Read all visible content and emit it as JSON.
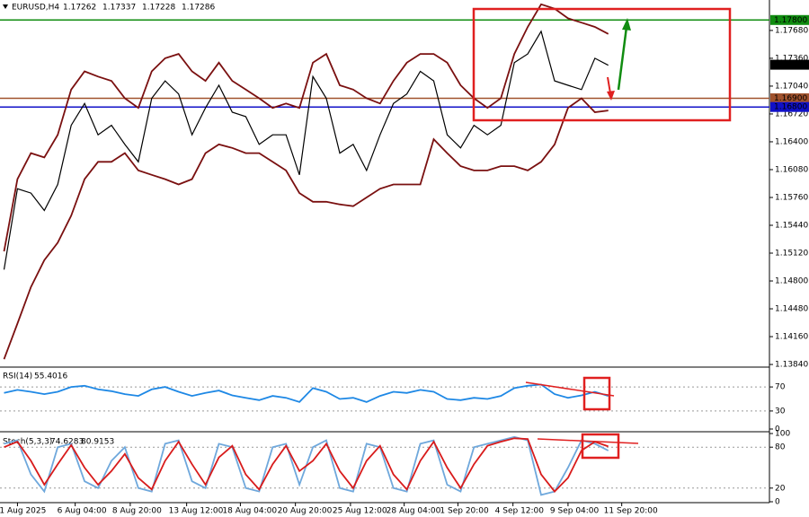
{
  "chart_data": [
    {
      "type": "line",
      "title": "EURUSD,H4",
      "ohlc": [
        1.17262,
        1.17337,
        1.17228,
        1.17286
      ],
      "x": [
        0,
        1,
        2,
        3,
        4,
        5,
        6,
        7,
        8,
        9,
        10,
        11,
        12,
        13,
        14,
        15,
        16,
        17,
        18,
        19,
        20,
        21,
        22,
        23,
        24,
        25,
        26,
        27,
        28,
        29,
        30,
        31,
        32,
        33,
        34,
        35,
        36,
        37,
        38,
        39,
        40,
        41,
        42,
        43,
        44,
        45
      ],
      "xlim": [
        -0.3,
        57
      ],
      "xticks": [
        {
          "value": 1,
          "label": "1 Aug 2025"
        },
        {
          "value": 5.3,
          "label": "6 Aug 04:00"
        },
        {
          "value": 9.4,
          "label": "8 Aug 20:00"
        },
        {
          "value": 13.6,
          "label": "13 Aug 12:00"
        },
        {
          "value": 17.6,
          "label": "18 Aug 04:00"
        },
        {
          "value": 21.7,
          "label": "20 Aug 20:00"
        },
        {
          "value": 25.8,
          "label": "25 Aug 12:00"
        },
        {
          "value": 29.8,
          "label": "28 Aug 04:00"
        },
        {
          "value": 33.8,
          "label": "1 Sep 20:00"
        },
        {
          "value": 37.9,
          "label": "4 Sep 12:00"
        },
        {
          "value": 42,
          "label": "9 Sep 04:00"
        },
        {
          "value": 46,
          "label": "11 Sep 20:00"
        }
      ],
      "ylim": [
        1.1382,
        1.1803
      ],
      "yticks": [
        {
          "value": 1.1768,
          "label": "1.17680"
        },
        {
          "value": 1.1736,
          "label": "1.17360"
        },
        {
          "value": 1.1704,
          "label": "1.17040"
        },
        {
          "value": 1.1672,
          "label": "1.16720"
        },
        {
          "value": 1.164,
          "label": "1.16400"
        },
        {
          "value": 1.1608,
          "label": "1.16080"
        },
        {
          "value": 1.1576,
          "label": "1.15760"
        },
        {
          "value": 1.1544,
          "label": "1.15440"
        },
        {
          "value": 1.1512,
          "label": "1.15120"
        },
        {
          "value": 1.148,
          "label": "1.14800"
        },
        {
          "value": 1.1448,
          "label": "1.14480"
        },
        {
          "value": 1.1416,
          "label": "1.14160"
        },
        {
          "value": 1.1384,
          "label": "1.13840"
        }
      ],
      "levels": [
        {
          "value": 1.178,
          "label": "1.17800",
          "color": "#108c10"
        },
        {
          "value": 1.169,
          "label": "1.16900",
          "color": "#a0522d"
        },
        {
          "value": 1.168,
          "label": "1.16800",
          "color": "#1010c8"
        }
      ],
      "current": {
        "value": 1.17286,
        "label": "1.17286",
        "color": "#000000"
      },
      "series": [
        {
          "color": "#000000",
          "values": [
            1.1493,
            1.1586,
            1.1581,
            1.1561,
            1.1591,
            1.1659,
            1.1684,
            1.1648,
            1.1659,
            1.1637,
            1.1617,
            1.169,
            1.171,
            1.1695,
            1.1648,
            1.1679,
            1.1705,
            1.1674,
            1.1669,
            1.1637,
            1.1648,
            1.1648,
            1.1602,
            1.1715,
            1.169,
            1.1627,
            1.1637,
            1.1607,
            1.1648,
            1.1684,
            1.1695,
            1.1721,
            1.171,
            1.1648,
            1.1633,
            1.1659,
            1.1648,
            1.1659,
            1.1731,
            1.1741,
            1.1767,
            1.171,
            1.1705,
            1.17,
            1.1736,
            1.1728
          ]
        },
        {
          "color": "#7a1010",
          "values": [
            1.1514,
            1.1597,
            1.1627,
            1.1622,
            1.1648,
            1.17,
            1.1721,
            1.1715,
            1.171,
            1.169,
            1.1679,
            1.1721,
            1.1736,
            1.1741,
            1.1721,
            1.171,
            1.1731,
            1.171,
            1.17,
            1.169,
            1.1679,
            1.1684,
            1.1679,
            1.1731,
            1.1741,
            1.1705,
            1.17,
            1.169,
            1.1684,
            1.171,
            1.1731,
            1.1741,
            1.1741,
            1.1731,
            1.1705,
            1.169,
            1.1679,
            1.169,
            1.1741,
            1.1772,
            1.1798,
            1.1793,
            1.1782,
            1.1777,
            1.1772,
            1.1764
          ]
        },
        {
          "color": "#7a1010",
          "values": [
            1.139,
            1.1431,
            1.1473,
            1.1504,
            1.1524,
            1.1555,
            1.1597,
            1.1617,
            1.1617,
            1.1627,
            1.1607,
            1.1602,
            1.1597,
            1.1591,
            1.1597,
            1.1627,
            1.1637,
            1.1633,
            1.1627,
            1.1627,
            1.1617,
            1.1607,
            1.1581,
            1.1571,
            1.1571,
            1.1568,
            1.1566,
            1.1576,
            1.1586,
            1.1591,
            1.1591,
            1.1591,
            1.1643,
            1.1627,
            1.1612,
            1.1607,
            1.1607,
            1.1612,
            1.1612,
            1.1607,
            1.1617,
            1.1637,
            1.1679,
            1.169,
            1.1674,
            1.1676
          ]
        }
      ]
    },
    {
      "type": "line",
      "title": "RSI(14)",
      "readouts": [
        55.4016
      ],
      "x": [
        0,
        1,
        2,
        3,
        4,
        5,
        6,
        7,
        8,
        9,
        10,
        11,
        12,
        13,
        14,
        15,
        16,
        17,
        18,
        19,
        20,
        21,
        22,
        23,
        24,
        25,
        26,
        27,
        28,
        29,
        30,
        31,
        32,
        33,
        34,
        35,
        36,
        37,
        38,
        39,
        40,
        41,
        42,
        43,
        44,
        45
      ],
      "xlim": [
        -0.3,
        57
      ],
      "ylim": [
        0,
        100
      ],
      "yticks": [
        0,
        30,
        70
      ],
      "levels_dashed": [
        30,
        70
      ],
      "series": [
        {
          "color": "#1e88e5",
          "values": [
            60,
            65,
            62,
            58,
            62,
            70,
            72,
            66,
            63,
            58,
            55,
            66,
            70,
            62,
            55,
            60,
            64,
            56,
            52,
            48,
            55,
            52,
            45,
            68,
            62,
            50,
            52,
            45,
            55,
            62,
            60,
            65,
            62,
            50,
            48,
            52,
            50,
            55,
            68,
            72,
            74,
            58,
            52,
            56,
            62,
            55
          ]
        }
      ]
    },
    {
      "type": "line",
      "title": "Stoch(5,3,3)",
      "readouts": [
        74.6283,
        80.9153
      ],
      "x": [
        0,
        1,
        2,
        3,
        4,
        5,
        6,
        7,
        8,
        9,
        10,
        11,
        12,
        13,
        14,
        15,
        16,
        17,
        18,
        19,
        20,
        21,
        22,
        23,
        24,
        25,
        26,
        27,
        28,
        29,
        30,
        31,
        32,
        33,
        34,
        35,
        36,
        37,
        38,
        39,
        40,
        41,
        42,
        43,
        44,
        45
      ],
      "xlim": [
        -0.3,
        57
      ],
      "ylim": [
        0,
        100
      ],
      "yticks": [
        0,
        20,
        80,
        100
      ],
      "levels_dashed": [
        20,
        80
      ],
      "series": [
        {
          "color": "#6fa8dc",
          "values": [
            85,
            90,
            40,
            15,
            80,
            85,
            30,
            20,
            60,
            80,
            20,
            15,
            85,
            90,
            30,
            20,
            85,
            80,
            20,
            15,
            80,
            85,
            25,
            80,
            90,
            20,
            15,
            85,
            80,
            20,
            15,
            85,
            90,
            25,
            15,
            80,
            85,
            90,
            95,
            90,
            10,
            15,
            50,
            90,
            85,
            75
          ]
        },
        {
          "color": "#d81b1b",
          "values": [
            80,
            88,
            60,
            25,
            55,
            83,
            50,
            25,
            45,
            70,
            35,
            18,
            60,
            88,
            55,
            25,
            65,
            82,
            40,
            18,
            55,
            82,
            45,
            60,
            85,
            45,
            20,
            60,
            82,
            40,
            18,
            60,
            88,
            50,
            20,
            55,
            82,
            88,
            93,
            92,
            40,
            15,
            35,
            75,
            88,
            81
          ]
        }
      ]
    }
  ]
}
